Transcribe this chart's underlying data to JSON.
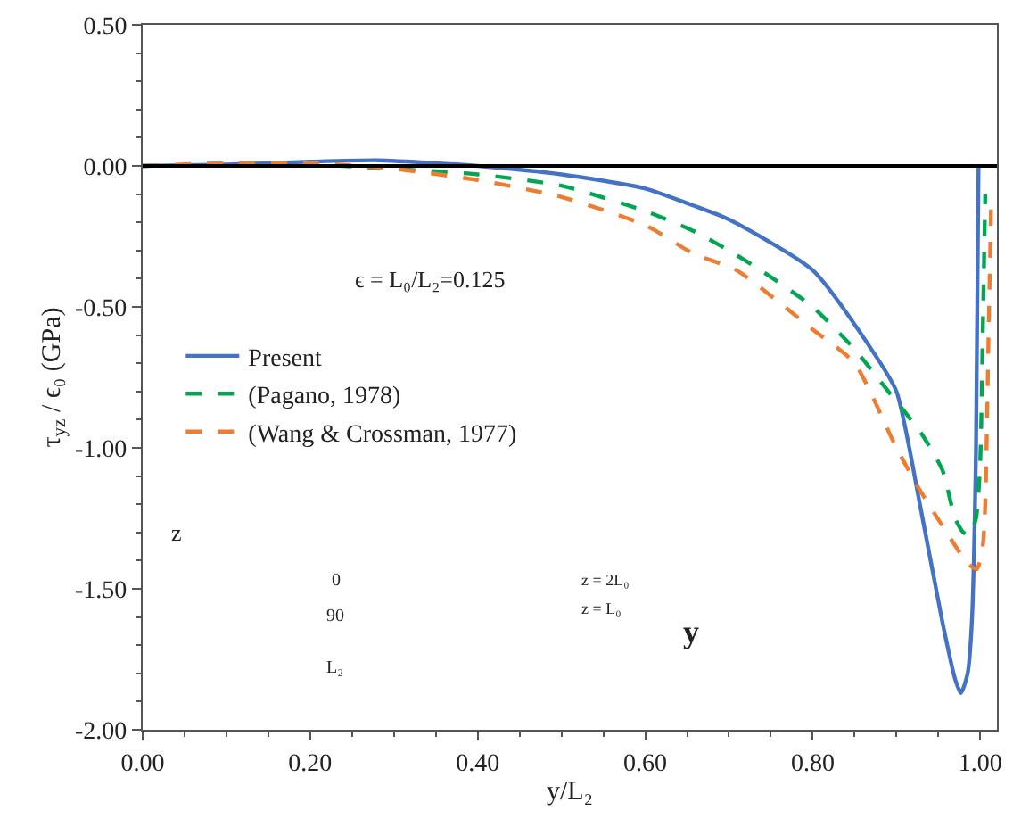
{
  "chart_data": {
    "type": "line",
    "xlabel": "y/L₂",
    "ylabel": "τ$_{yz}$ / ϵ₀ (GPa)",
    "xlim": [
      0,
      1.02
    ],
    "xticks": [
      {
        "value": 0,
        "label": "0.00"
      },
      {
        "value": 0.2,
        "label": "0.20"
      },
      {
        "value": 0.4,
        "label": "0.40"
      },
      {
        "value": 0.6,
        "label": "0.60"
      },
      {
        "value": 0.8,
        "label": "0.80"
      },
      {
        "value": 1,
        "label": "1.00"
      }
    ],
    "ylim": [
      -2,
      0.5
    ],
    "yticks": [
      {
        "value": -2,
        "label": "-2.00"
      },
      {
        "value": -1.5,
        "label": "-1.50"
      },
      {
        "value": -1,
        "label": "-1.00"
      },
      {
        "value": -0.5,
        "label": "-0.50"
      },
      {
        "value": 0,
        "label": "0.00"
      },
      {
        "value": 0.5,
        "label": "0.50"
      }
    ],
    "legend": "left",
    "marker": "none",
    "ref_lines": [
      {
        "axis": "y",
        "value": 0,
        "color": "#000000"
      }
    ],
    "annotations": [
      "ϵ = L₀/L₂=0.125",
      "z",
      "0",
      "90",
      "z = 2L₀",
      "z = L₀",
      "y",
      "L₂"
    ],
    "series": [
      {
        "name": "Present",
        "color": "#4472c4",
        "line_style": "solid",
        "x": [
          0,
          0.1,
          0.2,
          0.28,
          0.35,
          0.4,
          0.5,
          0.6,
          0.657,
          0.7,
          0.8,
          0.87,
          0.9,
          0.928,
          0.955,
          0.97,
          0.977,
          0.985,
          0.99,
          0.995,
          0.998
        ],
        "values": [
          0,
          0.005,
          0.015,
          0.02,
          0.01,
          0,
          -0.03,
          -0.08,
          -0.14,
          -0.19,
          -0.37,
          -0.65,
          -0.8,
          -1.2,
          -1.62,
          -1.82,
          -1.87,
          -1.8,
          -1.62,
          -1.0,
          0
        ]
      },
      {
        "name": "(Pagano, 1978)",
        "color": "#00a651",
        "line_style": "dashed",
        "x": [
          0,
          0.1,
          0.2,
          0.3,
          0.4,
          0.5,
          0.6,
          0.657,
          0.7,
          0.743,
          0.8,
          0.85,
          0.885,
          0.93,
          0.955,
          0.97,
          0.98,
          0.987,
          0.995,
          1.0,
          1.003,
          1.006
        ],
        "values": [
          0,
          0.005,
          0.005,
          -0.01,
          -0.03,
          -0.07,
          -0.16,
          -0.23,
          -0.3,
          -0.38,
          -0.5,
          -0.65,
          -0.78,
          -0.95,
          -1.08,
          -1.25,
          -1.3,
          -1.31,
          -1.25,
          -1.05,
          -0.6,
          -0.1
        ]
      },
      {
        "name": "(Wang & Crossman, 1977)",
        "color": "#ed7d31",
        "line_style": "dashed",
        "x": [
          0,
          0.1,
          0.2,
          0.3,
          0.4,
          0.5,
          0.6,
          0.657,
          0.709,
          0.8,
          0.85,
          0.9,
          0.928,
          0.96,
          0.985,
          0.996,
          1.003,
          1.006,
          1.01,
          1.013
        ],
        "values": [
          0,
          0.01,
          0.01,
          -0.01,
          -0.05,
          -0.11,
          -0.21,
          -0.31,
          -0.37,
          -0.58,
          -0.7,
          -1.0,
          -1.15,
          -1.3,
          -1.41,
          -1.43,
          -1.35,
          -1.2,
          -0.6,
          -0.15
        ]
      }
    ]
  }
}
